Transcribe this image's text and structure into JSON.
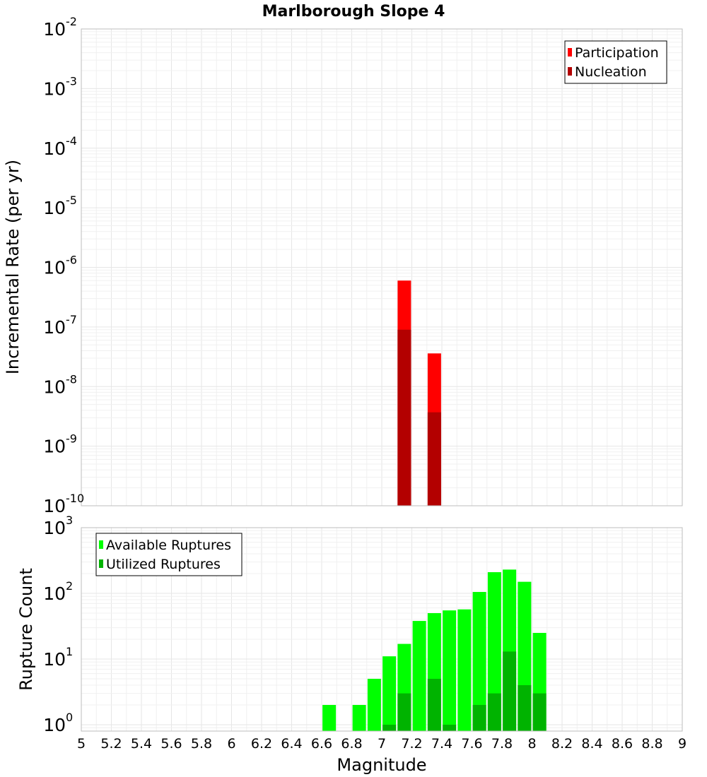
{
  "chart_data": [
    {
      "type": "bar",
      "title": "Marlborough Slope 4",
      "xlabel": "",
      "ylabel": "Incremental Rate (per yr)",
      "yscale": "log",
      "ylim": [
        1e-10,
        0.01
      ],
      "y_tick_exponents": [
        "-10",
        "-9",
        "-8",
        "-7",
        "-6",
        "-5",
        "-4",
        "-3",
        "-2"
      ],
      "xlim": [
        5,
        9
      ],
      "legend_position": "top-right",
      "series": [
        {
          "name": "Participation",
          "color": "#ff0000",
          "points": [
            {
              "x": 7.15,
              "y": 6e-07
            },
            {
              "x": 7.35,
              "y": 3.6e-08
            }
          ]
        },
        {
          "name": "Nucleation",
          "color": "#b30000",
          "points": [
            {
              "x": 7.15,
              "y": 9e-08
            },
            {
              "x": 7.35,
              "y": 3.7e-09
            }
          ]
        }
      ]
    },
    {
      "type": "bar",
      "title": "",
      "xlabel": "Magnitude",
      "ylabel": "Rupture Count",
      "yscale": "log",
      "ylim": [
        0.8,
        1000
      ],
      "y_tick_exponents": [
        "0",
        "1",
        "2",
        "3"
      ],
      "xlim": [
        5,
        9
      ],
      "x_ticks": [
        "5",
        "5.2",
        "5.4",
        "5.6",
        "5.8",
        "6",
        "6.2",
        "6.4",
        "6.6",
        "6.8",
        "7",
        "7.2",
        "7.4",
        "7.6",
        "7.8",
        "8",
        "8.2",
        "8.4",
        "8.6",
        "8.8",
        "9"
      ],
      "legend_position": "top-left",
      "series": [
        {
          "name": "Available Ruptures",
          "color": "#00ff00",
          "points": [
            {
              "x": 6.65,
              "y": 2
            },
            {
              "x": 6.85,
              "y": 2
            },
            {
              "x": 6.95,
              "y": 5
            },
            {
              "x": 7.05,
              "y": 11
            },
            {
              "x": 7.15,
              "y": 17
            },
            {
              "x": 7.25,
              "y": 38
            },
            {
              "x": 7.35,
              "y": 50
            },
            {
              "x": 7.45,
              "y": 55
            },
            {
              "x": 7.55,
              "y": 57
            },
            {
              "x": 7.65,
              "y": 105
            },
            {
              "x": 7.75,
              "y": 210
            },
            {
              "x": 7.85,
              "y": 230
            },
            {
              "x": 7.95,
              "y": 150
            },
            {
              "x": 8.05,
              "y": 25
            }
          ]
        },
        {
          "name": "Utilized Ruptures",
          "color": "#00b300",
          "points": [
            {
              "x": 7.05,
              "y": 1
            },
            {
              "x": 7.15,
              "y": 3
            },
            {
              "x": 7.35,
              "y": 5
            },
            {
              "x": 7.45,
              "y": 1
            },
            {
              "x": 7.65,
              "y": 2
            },
            {
              "x": 7.75,
              "y": 3
            },
            {
              "x": 7.85,
              "y": 13
            },
            {
              "x": 7.95,
              "y": 4
            },
            {
              "x": 8.05,
              "y": 3
            }
          ]
        }
      ]
    }
  ]
}
